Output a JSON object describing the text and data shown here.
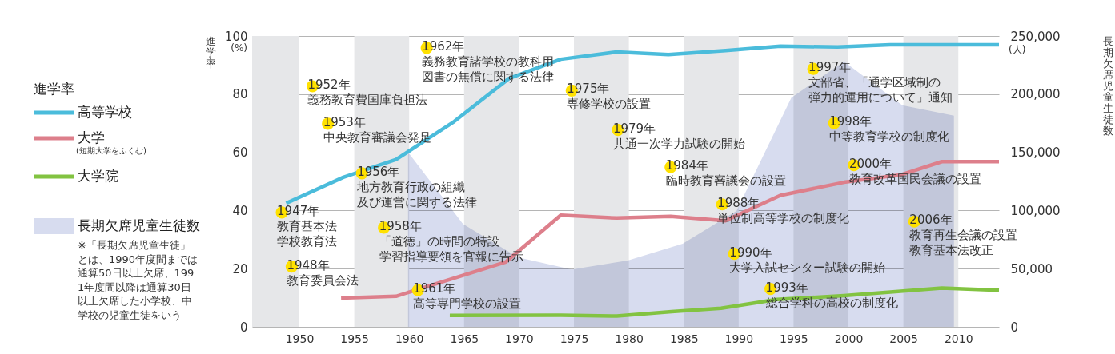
{
  "chart_data": {
    "type": "line",
    "ylabel": "進学率",
    "y2label": "長期欠席児童生徒数",
    "legend_title": "進学率",
    "legend": "left",
    "grid": "y",
    "xlim": [
      1945.7,
      2013.7
    ],
    "xticks": [
      1950,
      1955,
      1960,
      1965,
      1970,
      1975,
      1980,
      1985,
      1990,
      1995,
      2000,
      2005,
      2010
    ],
    "ylim": [
      0,
      100
    ],
    "yticks": [
      0,
      20,
      40,
      60,
      80,
      100
    ],
    "y2lim": [
      0,
      250000
    ],
    "y2ticks": [
      0,
      {
        "value": 50000,
        "label": "50,000"
      },
      {
        "value": 100000,
        "label": "100,000"
      },
      {
        "value": 150000,
        "label": "150,000"
      },
      {
        "value": 200000,
        "label": "200,000"
      },
      {
        "value": 250000,
        "label": "250,000"
      }
    ],
    "series": [
      {
        "name": "高等学校",
        "color": "#4bbcdb",
        "x": [
          1948.8,
          1954,
          1958.8,
          1964.1,
          1969.1,
          1973.8,
          1978.9,
          1983.6,
          1988.8,
          1993.8,
          1999,
          2003.8,
          2008.8,
          2013.7
        ],
        "values": [
          42.5,
          51.4,
          57.5,
          70.6,
          85.4,
          92,
          94.5,
          93.6,
          95,
          96.5,
          96.2,
          97,
          97,
          97
        ]
      },
      {
        "name": "大学\n(短期大学をふくむ)",
        "color": "#dd7f8b",
        "x": [
          1953.8,
          1958.8,
          1968.8,
          1973.8,
          1978.9,
          1983.8,
          1988.8,
          1993.8,
          1999.6,
          2004.8,
          2008.5,
          2013.7
        ],
        "values": [
          9.9,
          10.5,
          22.3,
          38.4,
          37.4,
          38,
          36.5,
          45.2,
          49.7,
          52.3,
          56.8,
          56.8
        ]
      },
      {
        "name": "大学院",
        "color": "#82c341",
        "x": [
          1963.7,
          1973.8,
          1978.9,
          1983.9,
          1988.4,
          1993.5,
          1999.6,
          2008.5,
          2013.7
        ],
        "values": [
          3.9,
          4,
          3.7,
          5.2,
          6.4,
          9.4,
          10.7,
          13.3,
          12.6
        ]
      },
      {
        "name": "長期欠席児童生徒数",
        "type": "area",
        "axis": "y2",
        "color": "#d7dcef",
        "x": [
          1959.9,
          1964.9,
          1969.9,
          1974.8,
          1979.9,
          1984.9,
          1989.8,
          1994.8,
          1999.6,
          2004.9,
          2009.6
        ],
        "values": [
          150000,
          88500,
          59800,
          49200,
          57000,
          71400,
          99600,
          197000,
          228000,
          190500,
          181500
        ]
      }
    ],
    "bands": [
      {
        "axis": "x",
        "from": 1945.7,
        "to": 1950,
        "color": "#e6e7e9"
      },
      {
        "axis": "x",
        "from": 1955,
        "to": 1960,
        "color": "#e6e7e9"
      },
      {
        "axis": "x",
        "from": 1965,
        "to": 1970,
        "color": "#e6e7e9"
      },
      {
        "axis": "x",
        "from": 1975,
        "to": 1980,
        "color": "#e6e7e9"
      },
      {
        "axis": "x",
        "from": 1985,
        "to": 1990,
        "color": "#e6e7e9"
      },
      {
        "axis": "x",
        "from": 1995,
        "to": 2000,
        "color": "#e6e7e9"
      },
      {
        "axis": "x",
        "from": 2005,
        "to": 2010,
        "color": "#e6e7e9"
      }
    ],
    "annotations": [
      "(%)",
      "(人)",
      "※「長期欠席児童生徒」とは、1990年度間までは通算50日以上欠席、1991年度間以降は通算30日以上欠席した小学校、中学校の児童生徒をいう",
      {
        "text": "1947年",
        "x": 1948.4,
        "y": 39.3
      },
      "教育基本法",
      "学校教育法",
      {
        "text": "1948年",
        "x": 1949.3,
        "y": 20.7
      },
      "教育委員会法",
      {
        "text": "1952年",
        "x": 1951.2,
        "y": 82.7
      },
      "義務教育費国庫負担法",
      {
        "text": "1953年",
        "x": 1952.6,
        "y": 69.8
      },
      "中央教育審議会発足",
      {
        "text": "1956年",
        "x": 1955.7,
        "y": 52.8
      },
      "地方教育行政の組織及び運営に関する法律",
      {
        "text": "1958年",
        "x": 1957.7,
        "y": 34.1
      },
      "「道徳」の時間の特設",
      "学習指導要領を官報に告示",
      {
        "text": "1961年",
        "x": 1960.8,
        "y": 12.6
      },
      "高等専門学校の設置",
      {
        "text": "1962年",
        "x": 1961.6,
        "y": 95.9
      },
      "義務教育諸学校の教科用図書の無償に関する法律",
      {
        "text": "1975年",
        "x": 1974.8,
        "y": 81.2
      },
      "専修学校の設置",
      {
        "text": "1979年",
        "x": 1979,
        "y": 67.7
      },
      "共通一次学力試験の開始",
      {
        "text": "1984年",
        "x": 1983.8,
        "y": 54.9
      },
      "臨時教育審議会の設置",
      {
        "text": "1988年",
        "x": 1988.5,
        "y": 42.1
      },
      "単位制高等学校の制度化",
      {
        "text": "1990年",
        "x": 1989.6,
        "y": 25.1
      },
      "大学入試センター試験の開始",
      {
        "text": "1993年",
        "x": 1992.9,
        "y": 13
      },
      "総合学科の高校の制度化",
      {
        "text": "1997年",
        "x": 1996.8,
        "y": 88.7
      },
      "文部省、「通学区域制の弾力的運用について」通知",
      {
        "text": "1998年",
        "x": 1998.7,
        "y": 70
      },
      "中等教育学校の制度化",
      {
        "text": "2000年",
        "x": 2000.5,
        "y": 55.6
      },
      "教育改革国民会議の設置",
      {
        "text": "2006年",
        "x": 2006,
        "y": 36.2
      },
      "教育再生会議の設置",
      "教育基本法改正"
    ]
  }
}
